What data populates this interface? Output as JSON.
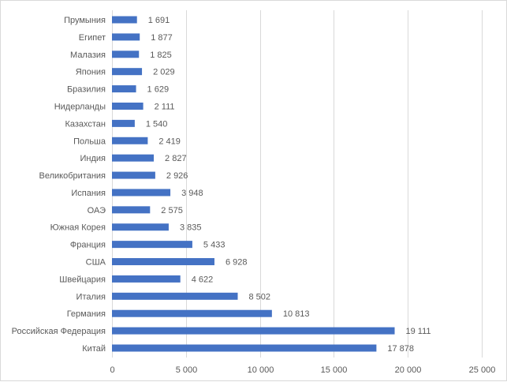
{
  "chart_data": {
    "type": "bar",
    "orientation": "horizontal",
    "title": "",
    "xlabel": "",
    "ylabel": "",
    "categories": [
      "Прумыния",
      "Египет",
      "Малазия",
      "Япония",
      "Бразилия",
      "Нидерланды",
      "Казахстан",
      "Польша",
      "Индия",
      "Великобритания",
      "Испания",
      "ОАЭ",
      "Южная Корея",
      "Франция",
      "США",
      "Швейцария",
      "Италия",
      "Германия",
      "Российская Федерация",
      "Китай"
    ],
    "values": [
      1691,
      1877,
      1825,
      2029,
      1629,
      2111,
      1540,
      2419,
      2827,
      2926,
      3948,
      2575,
      3835,
      5433,
      6928,
      4622,
      8502,
      10813,
      19111,
      17878
    ],
    "value_labels": [
      "1 691",
      "1 877",
      "1 825",
      "2 029",
      "1 629",
      "2 111",
      "1 540",
      "2 419",
      "2 827",
      "2 926",
      "3 948",
      "2 575",
      "3 835",
      "5 433",
      "6 928",
      "4 622",
      "8 502",
      "10 813",
      "19 111",
      "17 878"
    ],
    "xlim": [
      0,
      25000
    ],
    "x_ticks": [
      0,
      5000,
      10000,
      15000,
      20000,
      25000
    ],
    "x_tick_labels": [
      "0",
      "5 000",
      "10 000",
      "15 000",
      "20 000",
      "25 000"
    ],
    "grid": true,
    "legend": "none",
    "bar_color": "#4472c4"
  }
}
